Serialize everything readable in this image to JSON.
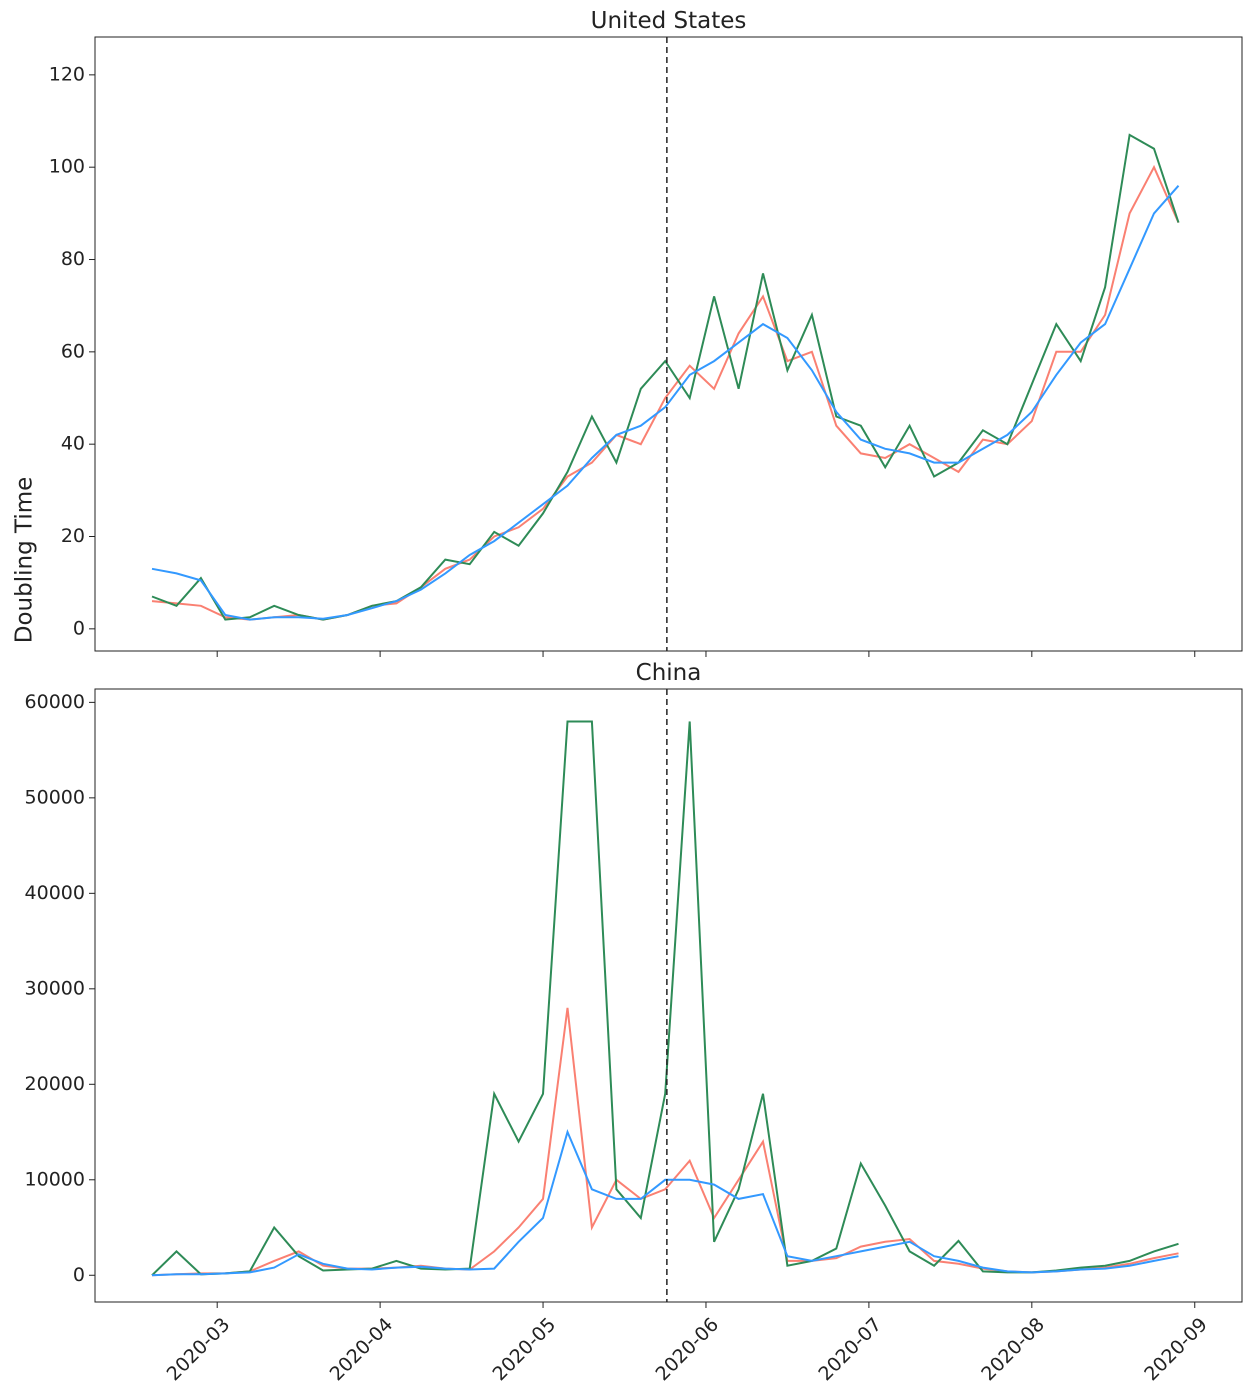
{
  "ylabel": "Doubling Time",
  "chart_data": [
    {
      "type": "line",
      "title": "United States",
      "x": [
        2.6,
        2.75,
        2.9,
        3.05,
        3.2,
        3.35,
        3.5,
        3.65,
        3.8,
        3.95,
        4.1,
        4.25,
        4.4,
        4.55,
        4.7,
        4.85,
        5.0,
        5.15,
        5.3,
        5.45,
        5.6,
        5.75,
        5.9,
        6.05,
        6.2,
        6.35,
        6.5,
        6.65,
        6.8,
        6.95,
        7.1,
        7.25,
        7.4,
        7.55,
        7.7,
        7.85,
        8.0,
        8.15,
        8.3,
        8.45,
        8.6,
        8.75,
        8.9
      ],
      "series": [
        {
          "color": "#fa8072",
          "values": [
            6,
            5.5,
            5,
            2.5,
            2,
            2.5,
            3,
            2,
            3,
            5,
            5.5,
            9,
            13,
            15,
            20,
            22,
            26,
            33,
            36,
            42,
            40,
            50,
            57,
            52,
            64,
            72,
            58,
            60,
            44,
            38,
            37,
            40,
            37,
            34,
            41,
            40,
            45,
            60,
            60,
            68,
            90,
            100,
            88
          ]
        },
        {
          "color": "#2e8b57",
          "values": [
            7,
            5,
            11,
            2,
            2.5,
            5,
            3,
            2,
            3,
            5,
            6,
            9,
            15,
            14,
            21,
            18,
            25,
            34,
            46,
            36,
            52,
            58,
            50,
            72,
            52,
            77,
            56,
            68,
            46,
            44,
            35,
            44,
            33,
            36,
            43,
            40,
            53,
            66,
            58,
            74,
            107,
            104,
            88
          ]
        },
        {
          "color": "#3399ff",
          "values": [
            13,
            12,
            10.5,
            3,
            2,
            2.5,
            2.5,
            2.2,
            3,
            4.5,
            6,
            8.5,
            12,
            16,
            19,
            23,
            27,
            31,
            37,
            42,
            44,
            48,
            55,
            58,
            62,
            66,
            63,
            56,
            47,
            41,
            39,
            38,
            36,
            36,
            39,
            42,
            47,
            55,
            62,
            66,
            78,
            90,
            96
          ]
        }
      ],
      "xlim": [
        2.25,
        9.29
      ],
      "xticks": [
        3,
        4,
        5,
        6,
        7,
        8,
        9
      ],
      "ylim": [
        -4.8,
        128.2
      ],
      "yticks": [
        0,
        20,
        40,
        60,
        80,
        100,
        120
      ],
      "vline": 5.76
    },
    {
      "type": "line",
      "title": "China",
      "x": [
        2.6,
        2.75,
        2.9,
        3.05,
        3.2,
        3.35,
        3.5,
        3.65,
        3.8,
        3.95,
        4.1,
        4.25,
        4.4,
        4.55,
        4.7,
        4.85,
        5.0,
        5.15,
        5.3,
        5.45,
        5.6,
        5.75,
        5.9,
        6.05,
        6.2,
        6.35,
        6.5,
        6.65,
        6.8,
        6.95,
        7.1,
        7.25,
        7.4,
        7.55,
        7.7,
        7.85,
        8.0,
        8.15,
        8.3,
        8.45,
        8.6,
        8.75,
        8.9
      ],
      "series": [
        {
          "color": "#fa8072",
          "values": [
            0,
            100,
            200,
            200,
            400,
            1500,
            2500,
            1000,
            700,
            700,
            800,
            1000,
            700,
            600,
            2500,
            5000,
            8000,
            28000,
            5000,
            10000,
            8000,
            9000,
            12000,
            6000,
            10000,
            14000,
            1500,
            1500,
            1800,
            3000,
            3500,
            3800,
            1500,
            1200,
            700,
            400,
            300,
            400,
            600,
            800,
            1200,
            1800,
            2300
          ]
        },
        {
          "color": "#2e8b57",
          "values": [
            0,
            2500,
            100,
            200,
            400,
            5000,
            2000,
            500,
            600,
            700,
            1500,
            700,
            600,
            700,
            19000,
            14000,
            19000,
            58000,
            58000,
            9000,
            6000,
            19000,
            58000,
            3500,
            9000,
            19000,
            1000,
            1500,
            2800,
            11700,
            7300,
            2500,
            1000,
            3600,
            400,
            300,
            300,
            500,
            800,
            1000,
            1500,
            2500,
            3300
          ]
        },
        {
          "color": "#3399ff",
          "values": [
            0,
            100,
            100,
            200,
            300,
            800,
            2200,
            1200,
            700,
            600,
            800,
            900,
            700,
            600,
            700,
            3500,
            6000,
            15000,
            9000,
            8000,
            8000,
            10000,
            10000,
            9500,
            8000,
            8500,
            2000,
            1500,
            2000,
            2500,
            3000,
            3500,
            2000,
            1500,
            800,
            400,
            300,
            400,
            600,
            700,
            1000,
            1500,
            2000
          ]
        }
      ],
      "xlim": [
        2.25,
        9.29
      ],
      "xticks": [
        {
          "value": 3,
          "label": "2020-03"
        },
        {
          "value": 4,
          "label": "2020-04"
        },
        {
          "value": 5,
          "label": "2020-05"
        },
        {
          "value": 6,
          "label": "2020-06"
        },
        {
          "value": 7,
          "label": "2020-07"
        },
        {
          "value": 8,
          "label": "2020-08"
        },
        {
          "value": 9,
          "label": "2020-09"
        }
      ],
      "ylim": [
        -2800,
        61400
      ],
      "yticks": [
        0,
        10000,
        20000,
        30000,
        40000,
        50000,
        60000
      ],
      "vline": 5.76
    }
  ]
}
